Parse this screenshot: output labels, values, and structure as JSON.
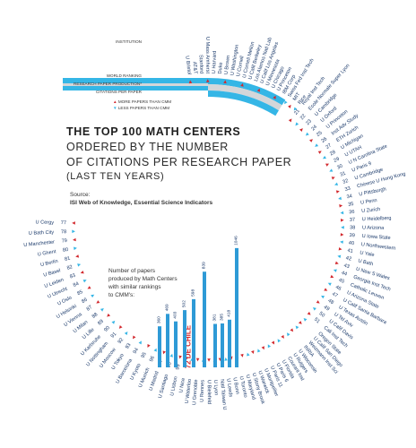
{
  "title_line1": "THE TOP 100 MATH CENTERS",
  "title_line2": "ORDERED BY THE NUMBER",
  "title_line3": "OF CITATIONS PER RESEARCH PAPER",
  "title_line4": "(LAST TEN YEARS)",
  "source_label": "Source:",
  "source_text": "ISI Web of Knowledge, Essential Science Indicators",
  "bar_caption": [
    "Number of papers",
    "produced by Math Centers",
    "with similar rankings",
    "to CMM's:"
  ],
  "header_labels": {
    "institution": "INSTITUTION",
    "world_ranking": "WORLD RANKING",
    "production": "RESEARCH PAPER PRODUCTION*",
    "citations": "CITATIONS PER PAPER"
  },
  "legend": {
    "more": "MORE PAPERS THAN CMM",
    "less": "LESS PAPERS THAN CMM"
  },
  "colors": {
    "cyan": "#35b6e6",
    "red": "#d2292e",
    "navy": "#1b3a6b",
    "band_gray": "#d4d6d9",
    "bar_blue": "#2e9ad6",
    "text": "#222222"
  },
  "top_labels": [
    "U Bristol",
    "AT&T",
    "Stanford",
    "U Mass Amherst",
    "U Harvard",
    "Duke",
    "U Brown",
    "U Washington",
    "U Cornell",
    "U Cornell Mellon",
    "U Calif Berkeley",
    "Los Alamos Natl Lab",
    "U Calif Los Angeles",
    "U Minnesota",
    "U Chicago",
    "U Princeton",
    "IBM Corp",
    "Swiss Fed Inst Tech",
    "MIT",
    "Rice"
  ],
  "right_labels": [
    "Royal Inst Tech",
    "Ecole Normale Super Lyon",
    "U Cambridge",
    "U Oxford",
    "U Princeton",
    "Inst Adv Study",
    "ETH Zurich",
    "U Michigan",
    "U UTAH",
    "U N Carolina State",
    "U Paris 9",
    "U Cambridge",
    "Chinese U Hong Kong",
    "U Pittsburgh",
    "U Penn",
    "U Zurich",
    "U Heidelberg",
    "U Arizona",
    "U Iowa State",
    "U Northwestern",
    "U Yale",
    "U Bath",
    "U New S Wales",
    "Georgia Inst Tech",
    "Catholic Leuven",
    "U Arizona State",
    "U Calif Santa Barbara",
    "U Texas Austin",
    "U Tel Aviv",
    "U Calif Davis",
    "Cali Inst Tech"
  ],
  "bottom_labels": [
    "Oregon State",
    "U Calif San Diego",
    "Weizmann Inst Sci",
    "INRIA",
    "U Wisconsin",
    "U Rutgers",
    "Courant Inst",
    "U Florida",
    "U Paris 6",
    "U Paris 11",
    "U Montpellier",
    "U Warwick",
    "U Stony Brook",
    "U Maryland",
    "U Toronto",
    "U Bonn",
    "U Leeds",
    "Natl Taiwan U",
    "U Lyon",
    "U Bielefeld",
    "U Rennes",
    "U Grenoble",
    "U Waterloo",
    "U Nice"
  ],
  "left_labels": [
    "U Lisbon",
    "U Santiago",
    "U Madrid",
    "U Munich",
    "U Kyoto",
    "U Barcelona",
    "U Tokyo",
    "U Moscow",
    "U Nottingham",
    "U Karlsruhe",
    "U Lille",
    "U Milan",
    "U Vienna",
    "U Helsinki",
    "U Oslo",
    "U Utrecht",
    "U Leiden",
    "U Basel",
    "U Berlin",
    "U Ghent",
    "U Manchester",
    "U Bath City",
    "U Cergy"
  ],
  "cmm_label": "DE CHILE",
  "cmm_rank": "72",
  "chart_data": {
    "type": "bar",
    "values": [
      360,
      469,
      403,
      502,
      598,
      839,
      381,
      385,
      418,
      1046
    ],
    "ylabel": "",
    "xlabel": ""
  }
}
